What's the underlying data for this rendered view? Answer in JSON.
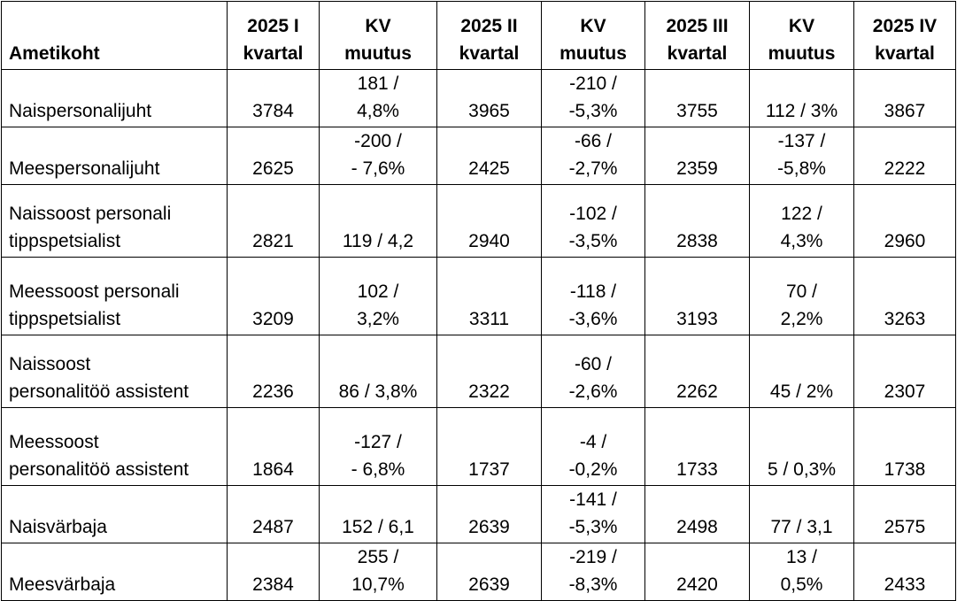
{
  "table": {
    "headers": [
      "Ametikoht",
      "2025 I\nkvartal",
      "KV\nmuutus",
      "2025 II\nkvartal",
      "KV\nmuutus",
      "2025 III\nkvartal",
      "KV\nmuutus",
      "2025 IV\nkvartal"
    ],
    "rows": [
      [
        "Naispersonalijuht",
        "3784",
        "181 /\n4,8%",
        "3965",
        "-210 /\n-5,3%",
        "3755",
        "112 / 3%",
        "3867"
      ],
      [
        "Meespersonalijuht",
        "2625",
        "-200 /\n- 7,6%",
        "2425",
        "-66 /\n-2,7%",
        "2359",
        "-137 /\n-5,8%",
        "2222"
      ],
      [
        "Naissoost personali\ntippspetsialist",
        "2821",
        "119 / 4,2",
        "2940",
        "-102 /\n-3,5%",
        "2838",
        "122 /\n4,3%",
        "2960"
      ],
      [
        "Meessoost personali\ntippspetsialist",
        "3209",
        "102 /\n3,2%",
        "3311",
        "-118 /\n-3,6%",
        "3193",
        "70 /\n2,2%",
        "3263"
      ],
      [
        "Naissoost\npersonalitöö assistent",
        "2236",
        "86 / 3,8%",
        "2322",
        "-60 /\n-2,6%",
        "2262",
        "45 / 2%",
        "2307"
      ],
      [
        "Meessoost\npersonalitöö assistent",
        "1864",
        "-127 /\n- 6,8%",
        "1737",
        "-4 /\n-0,2%",
        "1733",
        "5 / 0,3%",
        "1738"
      ],
      [
        "Naisvärbaja",
        "2487",
        "152 / 6,1",
        "2639",
        "-141 /\n-5,3%",
        "2498",
        "77 / 3,1",
        "2575"
      ],
      [
        "Meesvärbaja",
        "2384",
        "255 /\n10,7%",
        "2639",
        "-219 /\n-8,3%",
        "2420",
        "13 /\n0,5%",
        "2433"
      ]
    ]
  }
}
